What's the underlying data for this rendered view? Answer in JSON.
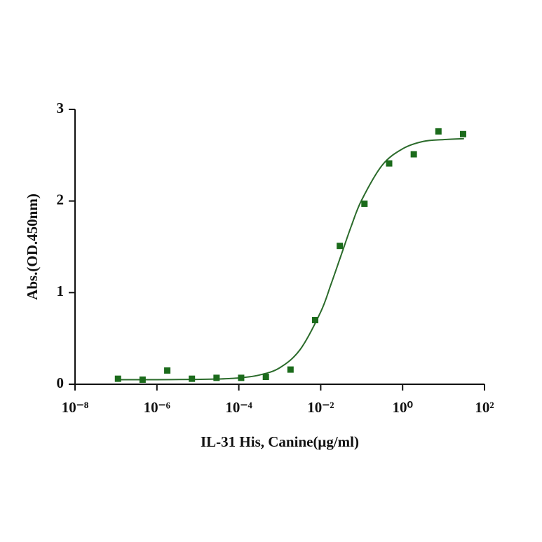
{
  "chart_data": {
    "type": "scatter",
    "xlabel": "IL-31 His, Canine(μg/ml)",
    "ylabel": "Abs.(OD.450nm)",
    "log_x": true,
    "color": "#1b6b1b",
    "x": [
      1.12e-07,
      4.47e-07,
      1.79e-06,
      7.15e-06,
      2.86e-05,
      0.000114,
      0.000458,
      0.00183,
      0.00732,
      0.0293,
      0.117,
      0.469,
      1.875,
      7.5,
      30
    ],
    "values": [
      0.06,
      0.05,
      0.15,
      0.06,
      0.07,
      0.07,
      0.08,
      0.16,
      0.7,
      1.51,
      1.97,
      2.41,
      2.51,
      2.76,
      2.73
    ],
    "fit": {
      "color": "#2b6b2b",
      "x": [
        1e-07,
        1e-06,
        1e-05,
        3.16e-05,
        0.0001,
        0.000316,
        0.001,
        0.00316,
        0.01,
        0.0178,
        0.0316,
        0.0562,
        0.1,
        0.316,
        1,
        3.16,
        10,
        31.6
      ],
      "values": [
        0.05,
        0.05,
        0.053,
        0.057,
        0.069,
        0.1,
        0.18,
        0.38,
        0.79,
        1.09,
        1.41,
        1.73,
        2.01,
        2.39,
        2.57,
        2.65,
        2.67,
        2.68
      ]
    },
    "xlim": [
      1e-08,
      100
    ],
    "xticks": [
      {
        "value": 1e-08,
        "label": "10⁻⁸"
      },
      {
        "value": 1e-06,
        "label": "10⁻⁶"
      },
      {
        "value": 0.0001,
        "label": "10⁻⁴"
      },
      {
        "value": 0.01,
        "label": "10⁻²"
      },
      {
        "value": 1,
        "label": "10⁰"
      },
      {
        "value": 100,
        "label": "10²"
      }
    ],
    "ylim": [
      0,
      3
    ],
    "yticks": [
      0,
      1,
      2,
      3
    ]
  }
}
